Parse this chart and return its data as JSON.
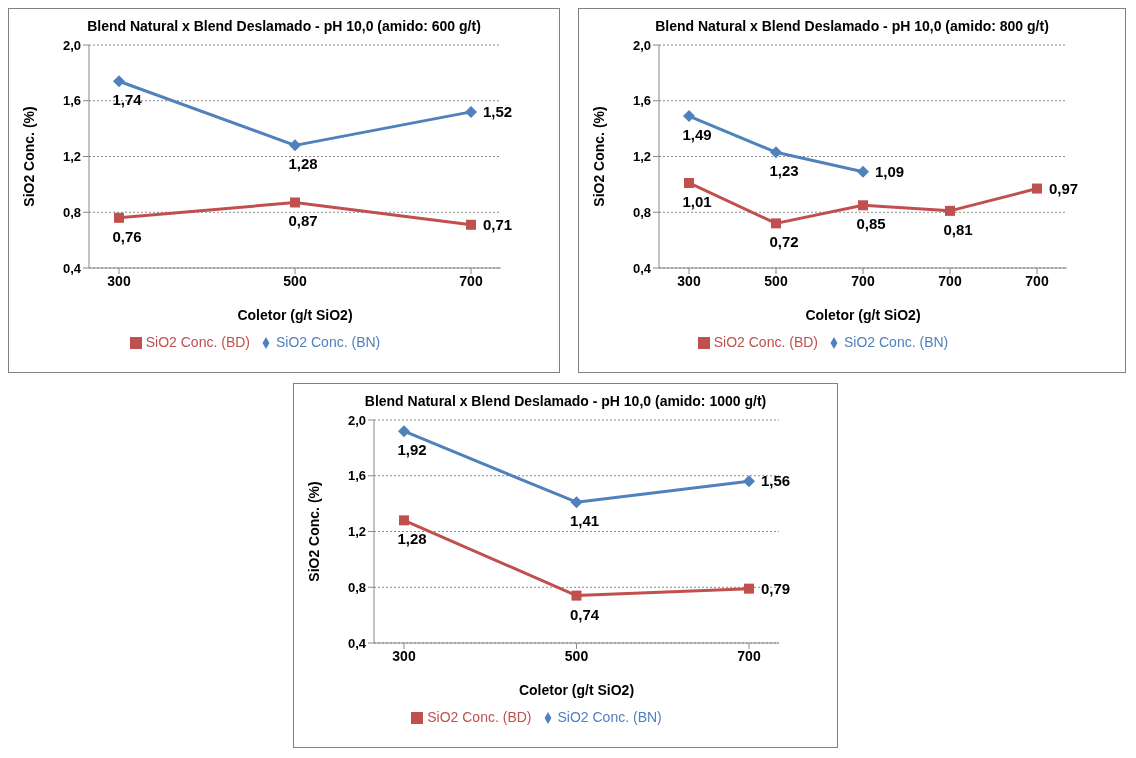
{
  "chart_data": [
    {
      "type": "line",
      "title": "Blend Natural x Blend Deslamado - pH 10,0 (amido: 600 g/t)",
      "xlabel": "Coletor (g/t SiO2)",
      "ylabel": "SiO2 Conc. (%)",
      "categories": [
        "300",
        "500",
        "700"
      ],
      "ylim": [
        0.4,
        2.0
      ],
      "yticks": [
        {
          "value": 0.4,
          "label": "0,4"
        },
        {
          "value": 0.8,
          "label": "0,8"
        },
        {
          "value": 1.2,
          "label": "1,2"
        },
        {
          "value": 1.6,
          "label": "1,6"
        },
        {
          "value": 2.0,
          "label": "2,0"
        }
      ],
      "grid": "y",
      "legend": "bottom",
      "series": [
        {
          "name": "SiO2 Conc. (BD)",
          "color": "#c0504d",
          "marker": "square",
          "values": [
            0.76,
            0.87,
            0.71
          ],
          "value_labels": [
            "0,76",
            "0,87",
            "0,71"
          ]
        },
        {
          "name": "SiO2 Conc. (BN)",
          "color": "#4f81bd",
          "marker": "diamond",
          "values": [
            1.74,
            1.28,
            1.52
          ],
          "value_labels": [
            "1,74",
            "1,28",
            "1,52"
          ]
        }
      ]
    },
    {
      "type": "line",
      "title": "Blend Natural x Blend Deslamado - pH 10,0 (amido: 800 g/t)",
      "xlabel": "Coletor (g/t SiO2)",
      "ylabel": "SiO2 Conc. (%)",
      "categories": [
        "300",
        "500",
        "700",
        "700",
        "700"
      ],
      "ylim": [
        0.4,
        2.0
      ],
      "yticks": [
        {
          "value": 0.4,
          "label": "0,4"
        },
        {
          "value": 0.8,
          "label": "0,8"
        },
        {
          "value": 1.2,
          "label": "1,2"
        },
        {
          "value": 1.6,
          "label": "1,6"
        },
        {
          "value": 2.0,
          "label": "2,0"
        }
      ],
      "grid": "y",
      "legend": "bottom",
      "series": [
        {
          "name": "SiO2 Conc. (BD)",
          "color": "#c0504d",
          "marker": "square",
          "values": [
            1.01,
            0.72,
            0.85,
            0.81,
            0.97
          ],
          "value_labels": [
            "1,01",
            "0,72",
            "0,85",
            "0,81",
            "0,97"
          ]
        },
        {
          "name": "SiO2 Conc. (BN)",
          "color": "#4f81bd",
          "marker": "diamond",
          "values": [
            1.49,
            1.23,
            1.09,
            null,
            null
          ],
          "value_labels": [
            "1,49",
            "1,23",
            "1,09",
            null,
            null
          ]
        }
      ]
    },
    {
      "type": "line",
      "title": "Blend Natural x Blend Deslamado - pH 10,0 (amido: 1000 g/t)",
      "xlabel": "Coletor (g/t SiO2)",
      "ylabel": "SiO2 Conc. (%)",
      "categories": [
        "300",
        "500",
        "700"
      ],
      "ylim": [
        0.4,
        2.0
      ],
      "yticks": [
        {
          "value": 0.4,
          "label": "0,4"
        },
        {
          "value": 0.8,
          "label": "0,8"
        },
        {
          "value": 1.2,
          "label": "1,2"
        },
        {
          "value": 1.6,
          "label": "1,6"
        },
        {
          "value": 2.0,
          "label": "2,0"
        }
      ],
      "grid": "y",
      "legend": "bottom",
      "series": [
        {
          "name": "SiO2 Conc. (BD)",
          "color": "#c0504d",
          "marker": "square",
          "values": [
            1.28,
            0.74,
            0.79
          ],
          "value_labels": [
            "1,28",
            "0,74",
            "0,79"
          ]
        },
        {
          "name": "SiO2 Conc. (BN)",
          "color": "#4f81bd",
          "marker": "diamond",
          "values": [
            1.92,
            1.41,
            1.56
          ],
          "value_labels": [
            "1,92",
            "1,41",
            "1,56"
          ]
        }
      ]
    }
  ]
}
